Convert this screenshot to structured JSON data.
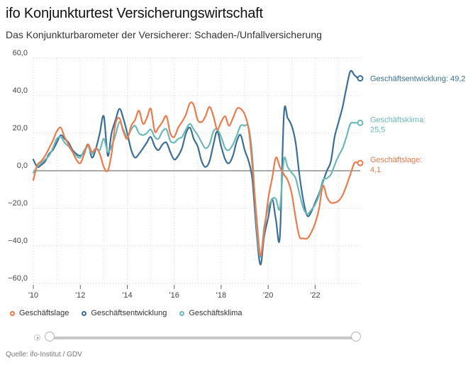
{
  "header": {
    "title": "ifo Konjunkturtest Versicherungswirtschaft",
    "subtitle": "Das Konjunkturbarometer der Versicherer: Schaden-/Unfallversicherung"
  },
  "footer": {
    "source": "Quelle: ifo-Institut / GDV"
  },
  "legend": [
    {
      "label": "Geschäftslage",
      "color": "#ee7a4c"
    },
    {
      "label": "Geschäftsentwicklung",
      "color": "#3b6e98"
    },
    {
      "label": "Geschäftsklima",
      "color": "#6ab9b5"
    }
  ],
  "slider": {
    "start_pct": 0,
    "end_pct": 100
  },
  "chart_data": {
    "type": "line",
    "xlabel": "",
    "ylabel": "",
    "xlim": [
      2010.0,
      2023.92
    ],
    "ylim": [
      -60,
      60
    ],
    "yticks": [
      -60,
      -40,
      -20,
      0,
      20,
      40,
      60
    ],
    "ytick_labels": [
      "−60,0",
      "−40,0",
      "−20,0",
      "0,0",
      "20,0",
      "40,0",
      "60,0"
    ],
    "xticks": [
      2010,
      2012,
      2014,
      2016,
      2018,
      2020,
      2022
    ],
    "xtick_labels": [
      "'10",
      "'12",
      "'14",
      "'16",
      "'18",
      "'20",
      "'22"
    ],
    "grid": "dotted",
    "series": [
      {
        "name": "Geschäftsentwicklung",
        "color": "#3b6e98",
        "end_label": "Geschäftsentwicklung: 49,2",
        "x": [
          2010.0,
          2010.17,
          2010.33,
          2010.5,
          2010.67,
          2010.83,
          2011.0,
          2011.17,
          2011.33,
          2011.5,
          2011.67,
          2011.83,
          2012.0,
          2012.17,
          2012.33,
          2012.5,
          2012.67,
          2012.83,
          2013.0,
          2013.17,
          2013.33,
          2013.5,
          2013.67,
          2013.83,
          2014.0,
          2014.17,
          2014.33,
          2014.5,
          2014.67,
          2014.83,
          2015.0,
          2015.17,
          2015.33,
          2015.5,
          2015.67,
          2015.83,
          2016.0,
          2016.17,
          2016.33,
          2016.5,
          2016.67,
          2016.83,
          2017.0,
          2017.17,
          2017.33,
          2017.5,
          2017.67,
          2017.83,
          2018.0,
          2018.17,
          2018.33,
          2018.5,
          2018.67,
          2018.83,
          2019.0,
          2019.17,
          2019.33,
          2019.5,
          2019.67,
          2019.83,
          2020.0,
          2020.17,
          2020.33,
          2020.5,
          2020.67,
          2020.83,
          2021.0,
          2021.17,
          2021.33,
          2021.5,
          2021.67,
          2021.83,
          2022.0,
          2022.17,
          2022.33,
          2022.5,
          2022.67,
          2022.83,
          2023.0,
          2023.17,
          2023.33,
          2023.5,
          2023.67,
          2023.83,
          2023.92
        ],
        "values": [
          6,
          2,
          3,
          5,
          9,
          11,
          15,
          19,
          17,
          15,
          11,
          9,
          8,
          10,
          14,
          7,
          12,
          20,
          29,
          8,
          20,
          27,
          33,
          28,
          20,
          11,
          7,
          9,
          12,
          15,
          18,
          13,
          11,
          14,
          15,
          10,
          6,
          8,
          12,
          20,
          23,
          17,
          13,
          5,
          2,
          5,
          14,
          21,
          13,
          6,
          4,
          8,
          16,
          19,
          11,
          5,
          -5,
          -32,
          -50,
          -35,
          -25,
          -15,
          -26,
          -35,
          30,
          28,
          24,
          15,
          -2,
          -16,
          -24,
          -22,
          -17,
          -12,
          -6,
          0,
          5,
          18,
          26,
          34,
          44,
          53,
          51,
          49.2,
          49.2
        ]
      },
      {
        "name": "Geschäftsklima",
        "color": "#6ab9b5",
        "end_label": "Geschäftsklima: 25,5",
        "x": [
          2010.0,
          2010.17,
          2010.33,
          2010.5,
          2010.67,
          2010.83,
          2011.0,
          2011.17,
          2011.33,
          2011.5,
          2011.67,
          2011.83,
          2012.0,
          2012.17,
          2012.33,
          2012.5,
          2012.67,
          2012.83,
          2013.0,
          2013.17,
          2013.33,
          2013.5,
          2013.67,
          2013.83,
          2014.0,
          2014.17,
          2014.33,
          2014.5,
          2014.67,
          2014.83,
          2015.0,
          2015.17,
          2015.33,
          2015.5,
          2015.67,
          2015.83,
          2016.0,
          2016.17,
          2016.33,
          2016.5,
          2016.67,
          2016.83,
          2017.0,
          2017.17,
          2017.33,
          2017.5,
          2017.67,
          2017.83,
          2018.0,
          2018.17,
          2018.33,
          2018.5,
          2018.67,
          2018.83,
          2019.0,
          2019.17,
          2019.33,
          2019.5,
          2019.67,
          2019.83,
          2020.0,
          2020.17,
          2020.33,
          2020.5,
          2020.67,
          2020.83,
          2021.0,
          2021.17,
          2021.33,
          2021.5,
          2021.67,
          2021.83,
          2022.0,
          2022.17,
          2022.33,
          2022.5,
          2022.67,
          2022.83,
          2023.0,
          2023.17,
          2023.33,
          2023.5,
          2023.67,
          2023.83,
          2023.92
        ],
        "values": [
          -1,
          2,
          4,
          6,
          8,
          12,
          17,
          18,
          15,
          13,
          10,
          8,
          7,
          11,
          13,
          9,
          12,
          11,
          17,
          10,
          13,
          19,
          26,
          22,
          18,
          22,
          24,
          20,
          19,
          20,
          22,
          18,
          17,
          21,
          22,
          16,
          15,
          17,
          18,
          22,
          25,
          22,
          19,
          15,
          12,
          14,
          21,
          22,
          18,
          12,
          11,
          14,
          19,
          24,
          24,
          23,
          7,
          -28,
          -46,
          -30,
          -20,
          -15,
          -15,
          -20,
          6,
          2,
          -1,
          -4,
          -12,
          -20,
          -23,
          -21,
          -18,
          -13,
          -5,
          -4,
          -2,
          3,
          8,
          12,
          18,
          25,
          25.5,
          25.5,
          25.5
        ]
      },
      {
        "name": "Geschäftslage",
        "color": "#ee7a4c",
        "end_label": "Geschäftslage: 4,1",
        "x": [
          2010.0,
          2010.17,
          2010.33,
          2010.5,
          2010.67,
          2010.83,
          2011.0,
          2011.17,
          2011.33,
          2011.5,
          2011.67,
          2011.83,
          2012.0,
          2012.17,
          2012.33,
          2012.5,
          2012.67,
          2012.83,
          2013.0,
          2013.17,
          2013.33,
          2013.5,
          2013.67,
          2013.83,
          2014.0,
          2014.17,
          2014.33,
          2014.5,
          2014.67,
          2014.83,
          2015.0,
          2015.17,
          2015.33,
          2015.5,
          2015.67,
          2015.83,
          2016.0,
          2016.17,
          2016.33,
          2016.5,
          2016.67,
          2016.83,
          2017.0,
          2017.17,
          2017.33,
          2017.5,
          2017.67,
          2017.83,
          2018.0,
          2018.17,
          2018.33,
          2018.5,
          2018.67,
          2018.83,
          2019.0,
          2019.17,
          2019.33,
          2019.5,
          2019.67,
          2019.83,
          2020.0,
          2020.17,
          2020.33,
          2020.5,
          2020.67,
          2020.83,
          2021.0,
          2021.17,
          2021.33,
          2021.5,
          2021.67,
          2021.83,
          2022.0,
          2022.17,
          2022.33,
          2022.5,
          2022.67,
          2022.83,
          2023.0,
          2023.17,
          2023.33,
          2023.5,
          2023.67,
          2023.83,
          2023.92
        ],
        "values": [
          -5,
          3,
          5,
          8,
          12,
          16,
          21,
          23,
          18,
          14,
          10,
          6,
          4,
          9,
          14,
          10,
          12,
          9,
          2,
          0,
          9,
          25,
          28,
          21,
          17,
          24,
          27,
          32,
          25,
          28,
          33,
          21,
          23,
          26,
          29,
          20,
          18,
          23,
          26,
          30,
          36,
          35,
          27,
          26,
          29,
          34,
          29,
          22,
          26,
          29,
          24,
          28,
          33,
          33,
          30,
          22,
          2,
          -24,
          -45,
          -33,
          -15,
          -4,
          7,
          2,
          -2,
          -5,
          -12,
          -25,
          -35,
          -36,
          -36,
          -33,
          -28,
          -20,
          -8,
          -14,
          -17,
          -17,
          -16,
          -13,
          -8,
          -2,
          4.1,
          4.1,
          4.1
        ]
      }
    ]
  }
}
